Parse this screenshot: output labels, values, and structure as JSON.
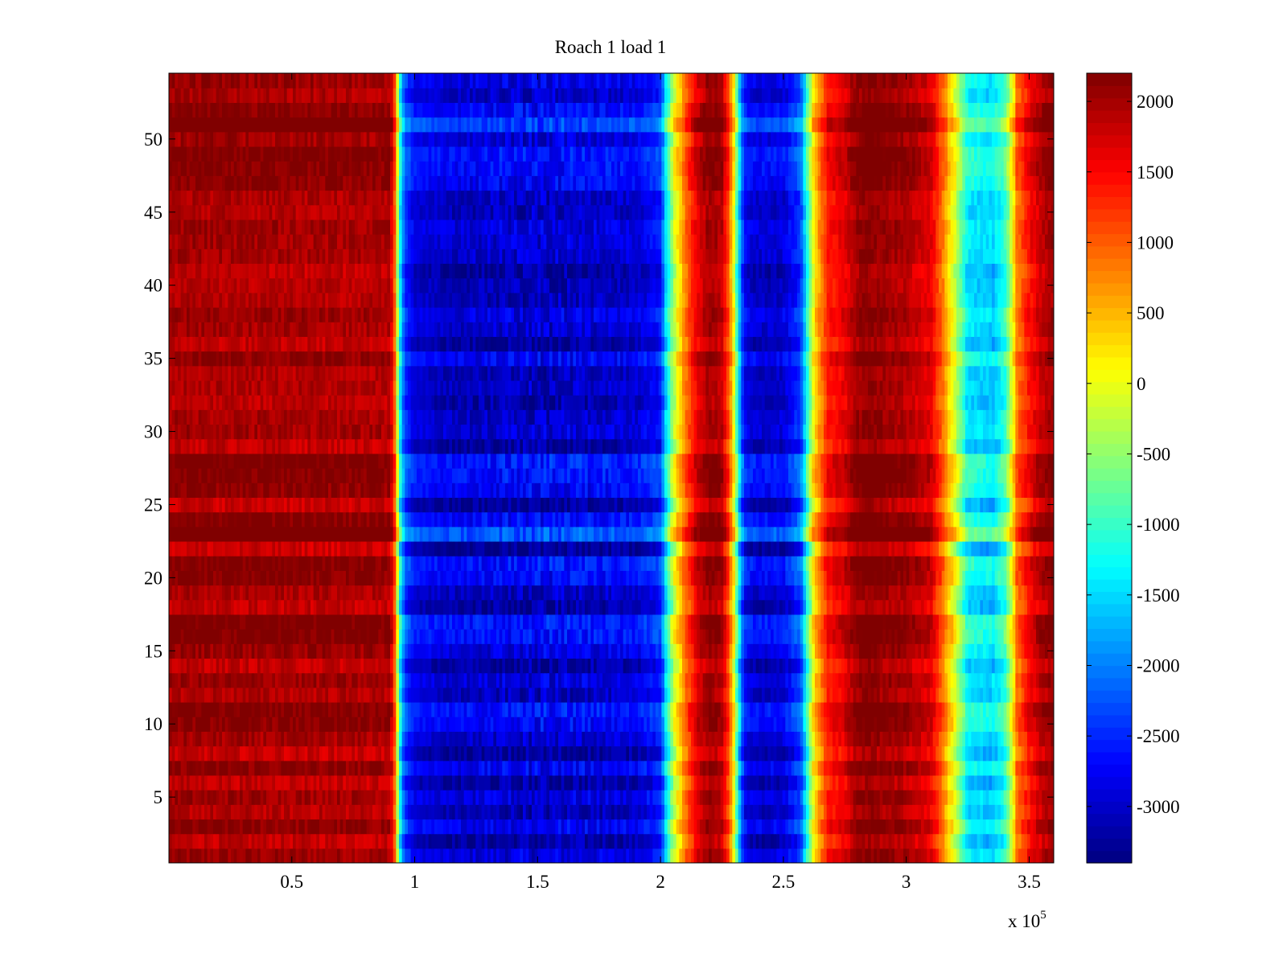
{
  "chart_data": {
    "type": "heatmap",
    "title": "Roach 1 load 1",
    "xlabel": "",
    "ylabel": "",
    "x_exponent_label": "x 10",
    "x_exponent_power": "5",
    "xlim": [
      0,
      3.6
    ],
    "ylim": [
      0.5,
      54.5
    ],
    "rows": 54,
    "x_ticks": [
      0.5,
      1,
      1.5,
      2,
      2.5,
      3,
      3.5
    ],
    "x_tick_labels": [
      "0.5",
      "1",
      "1.5",
      "2",
      "2.5",
      "3",
      "3.5"
    ],
    "y_ticks": [
      5,
      10,
      15,
      20,
      25,
      30,
      35,
      40,
      45,
      50
    ],
    "y_tick_labels": [
      "5",
      "10",
      "15",
      "20",
      "25",
      "30",
      "35",
      "40",
      "45",
      "50"
    ],
    "colorbar": {
      "colormap": "jet",
      "clim": [
        -3400,
        2200
      ],
      "ticks": [
        2000,
        1500,
        1000,
        500,
        0,
        -500,
        -1000,
        -1500,
        -2000,
        -2500,
        -3000
      ],
      "tick_labels": [
        "2000",
        "1500",
        "1000",
        "500",
        "0",
        "-500",
        "-1000",
        "-1500",
        "-2000",
        "-2500",
        "-3000"
      ]
    },
    "x_profile": {
      "x": [
        0.0,
        0.9,
        0.92,
        0.93,
        0.94,
        0.96,
        1.0,
        1.15,
        1.5,
        1.9,
        2.0,
        2.02,
        2.05,
        2.1,
        2.15,
        2.2,
        2.25,
        2.28,
        2.3,
        2.32,
        2.34,
        2.36,
        2.4,
        2.5,
        2.57,
        2.6,
        2.63,
        2.68,
        2.75,
        2.8,
        2.85,
        2.9,
        3.0,
        3.1,
        3.15,
        3.2,
        3.25,
        3.35,
        3.4,
        3.43,
        3.45,
        3.5,
        3.55,
        3.6
      ],
      "values": [
        1850,
        1800,
        800,
        -500,
        -1500,
        -2600,
        -3100,
        -3250,
        -3200,
        -3150,
        -2800,
        -1800,
        -600,
        700,
        1500,
        1900,
        1700,
        900,
        -300,
        -1800,
        -2900,
        -3100,
        -3200,
        -3150,
        -2600,
        -1200,
        200,
        1200,
        1500,
        1900,
        2000,
        1900,
        1800,
        1500,
        700,
        -400,
        -1600,
        -1800,
        -1300,
        -300,
        700,
        1300,
        1700,
        1900
      ],
      "noise": [
        350,
        350,
        250,
        250,
        250,
        250,
        250,
        400,
        700,
        400,
        300,
        300,
        300,
        300,
        300,
        300,
        300,
        300,
        300,
        300,
        300,
        300,
        350,
        350,
        300,
        300,
        300,
        300,
        300,
        300,
        300,
        300,
        300,
        300,
        300,
        300,
        350,
        350,
        300,
        300,
        300,
        300,
        300,
        300
      ]
    },
    "row_offsets": [
      350,
      0,
      500,
      100,
      350,
      0,
      500,
      -50,
      250,
      550,
      650,
      150,
      350,
      0,
      400,
      650,
      700,
      0,
      200,
      550,
      650,
      -100,
      1100,
      600,
      -50,
      500,
      650,
      700,
      0,
      300,
      250,
      50,
      200,
      150,
      500,
      0,
      250,
      400,
      150,
      100,
      0,
      250,
      300,
      350,
      150,
      200,
      500,
      600,
      650,
      300,
      1000,
      550,
      200,
      400
    ]
  }
}
